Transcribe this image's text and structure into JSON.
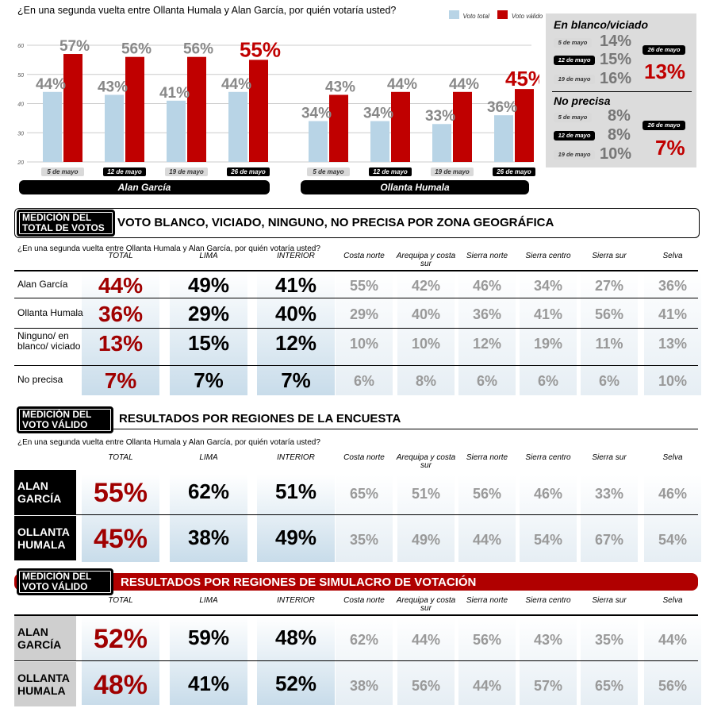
{
  "chart": {
    "question": "¿En una segunda vuelta entre Ollanta Humala y Alan García, por quién votaría usted?",
    "legend": [
      {
        "label": "Voto total",
        "color": "#b8d4e6"
      },
      {
        "label": "Voto válido",
        "color": "#c00000"
      }
    ],
    "y_ticks": [
      "60",
      "50",
      "40",
      "30",
      "20"
    ]
  },
  "chart_data": {
    "type": "bar",
    "ylim": [
      20,
      60
    ],
    "groups": [
      {
        "name": "Alan García",
        "categories": [
          "5 de mayo",
          "12 de mayo",
          "19 de mayo",
          "26 de mayo"
        ],
        "total": [
          44,
          43,
          41,
          44
        ],
        "valido": [
          57,
          56,
          56,
          55
        ],
        "total_labels": [
          "44%",
          "43%",
          "41%",
          "44%"
        ],
        "valido_labels": [
          "57%",
          "56%",
          "56%",
          "55%"
        ]
      },
      {
        "name": "Ollanta Humala",
        "categories": [
          "5 de mayo",
          "12 de mayo",
          "19 de mayo",
          "26 de mayo"
        ],
        "total": [
          34,
          34,
          33,
          36
        ],
        "valido": [
          43,
          44,
          44,
          45
        ],
        "total_labels": [
          "34%",
          "34%",
          "33%",
          "36%"
        ],
        "valido_labels": [
          "43%",
          "44%",
          "44%",
          "45%"
        ]
      }
    ],
    "series": [
      {
        "name": "Voto total",
        "color": "#b8d4e6"
      },
      {
        "name": "Voto válido",
        "color": "#c00000"
      }
    ]
  },
  "sidebox": {
    "blanco": {
      "title": "En blanco/viciado",
      "rows": [
        {
          "date": "5 de mayo",
          "value": "14%"
        },
        {
          "date": "12 de mayo",
          "value": "15%"
        },
        {
          "date": "19 de mayo",
          "value": "16%"
        }
      ],
      "latest_date": "26 de mayo",
      "latest_value": "13%"
    },
    "noprecisa": {
      "title": "No precisa",
      "rows": [
        {
          "date": "5 de mayo",
          "value": "8%"
        },
        {
          "date": "12 de mayo",
          "value": "8%"
        },
        {
          "date": "19 de mayo",
          "value": "10%"
        }
      ],
      "latest_date": "26 de mayo",
      "latest_value": "7%"
    }
  },
  "columns": [
    "TOTAL",
    "LIMA",
    "INTERIOR",
    "Costa norte",
    "Arequipa y costa sur",
    "Sierra norte",
    "Sierra centro",
    "Sierra sur",
    "Selva"
  ],
  "section1": {
    "badge": "MEDICIÓN DEL TOTAL DE VOTOS",
    "title": "VOTO BLANCO, VICIADO, NINGUNO, NO PRECISA POR ZONA GEOGRÁFICA",
    "question": "¿En una segunda vuelta entre Ollanta Humala y Alan García, por quién votaría usted?",
    "rows": [
      {
        "label": "Alan García",
        "values": [
          "44%",
          "49%",
          "41%",
          "55%",
          "42%",
          "46%",
          "34%",
          "27%",
          "36%"
        ]
      },
      {
        "label": "Ollanta Humala",
        "values": [
          "36%",
          "29%",
          "40%",
          "29%",
          "40%",
          "36%",
          "41%",
          "56%",
          "41%"
        ]
      },
      {
        "label": "Ninguno/ en blanco/ viciado",
        "values": [
          "13%",
          "15%",
          "12%",
          "10%",
          "10%",
          "12%",
          "19%",
          "11%",
          "13%"
        ]
      },
      {
        "label": "No precisa",
        "values": [
          "7%",
          "7%",
          "7%",
          "6%",
          "8%",
          "6%",
          "6%",
          "6%",
          "10%"
        ]
      }
    ]
  },
  "section2": {
    "badge": "MEDICIÓN DEL VOTO VÁLIDO",
    "title": "RESULTADOS POR REGIONES DE LA ENCUESTA",
    "question": "¿En una segunda vuelta entre Ollanta Humala y Alan García, por quién votaría usted?",
    "rows": [
      {
        "label": "ALAN GARCÍA",
        "values": [
          "55%",
          "62%",
          "51%",
          "65%",
          "51%",
          "56%",
          "46%",
          "33%",
          "46%"
        ]
      },
      {
        "label": "OLLANTA HUMALA",
        "values": [
          "45%",
          "38%",
          "49%",
          "35%",
          "49%",
          "44%",
          "54%",
          "67%",
          "54%"
        ]
      }
    ]
  },
  "section3": {
    "badge": "MEDICIÓN DEL VOTO VÁLIDO",
    "title": "RESULTADOS POR REGIONES DE SIMULACRO DE VOTACIÓN",
    "rows": [
      {
        "label": "ALAN GARCÍA",
        "values": [
          "52%",
          "59%",
          "48%",
          "62%",
          "44%",
          "56%",
          "43%",
          "35%",
          "44%"
        ]
      },
      {
        "label": "OLLANTA HUMALA",
        "values": [
          "48%",
          "41%",
          "52%",
          "38%",
          "56%",
          "44%",
          "57%",
          "65%",
          "56%"
        ]
      }
    ]
  }
}
